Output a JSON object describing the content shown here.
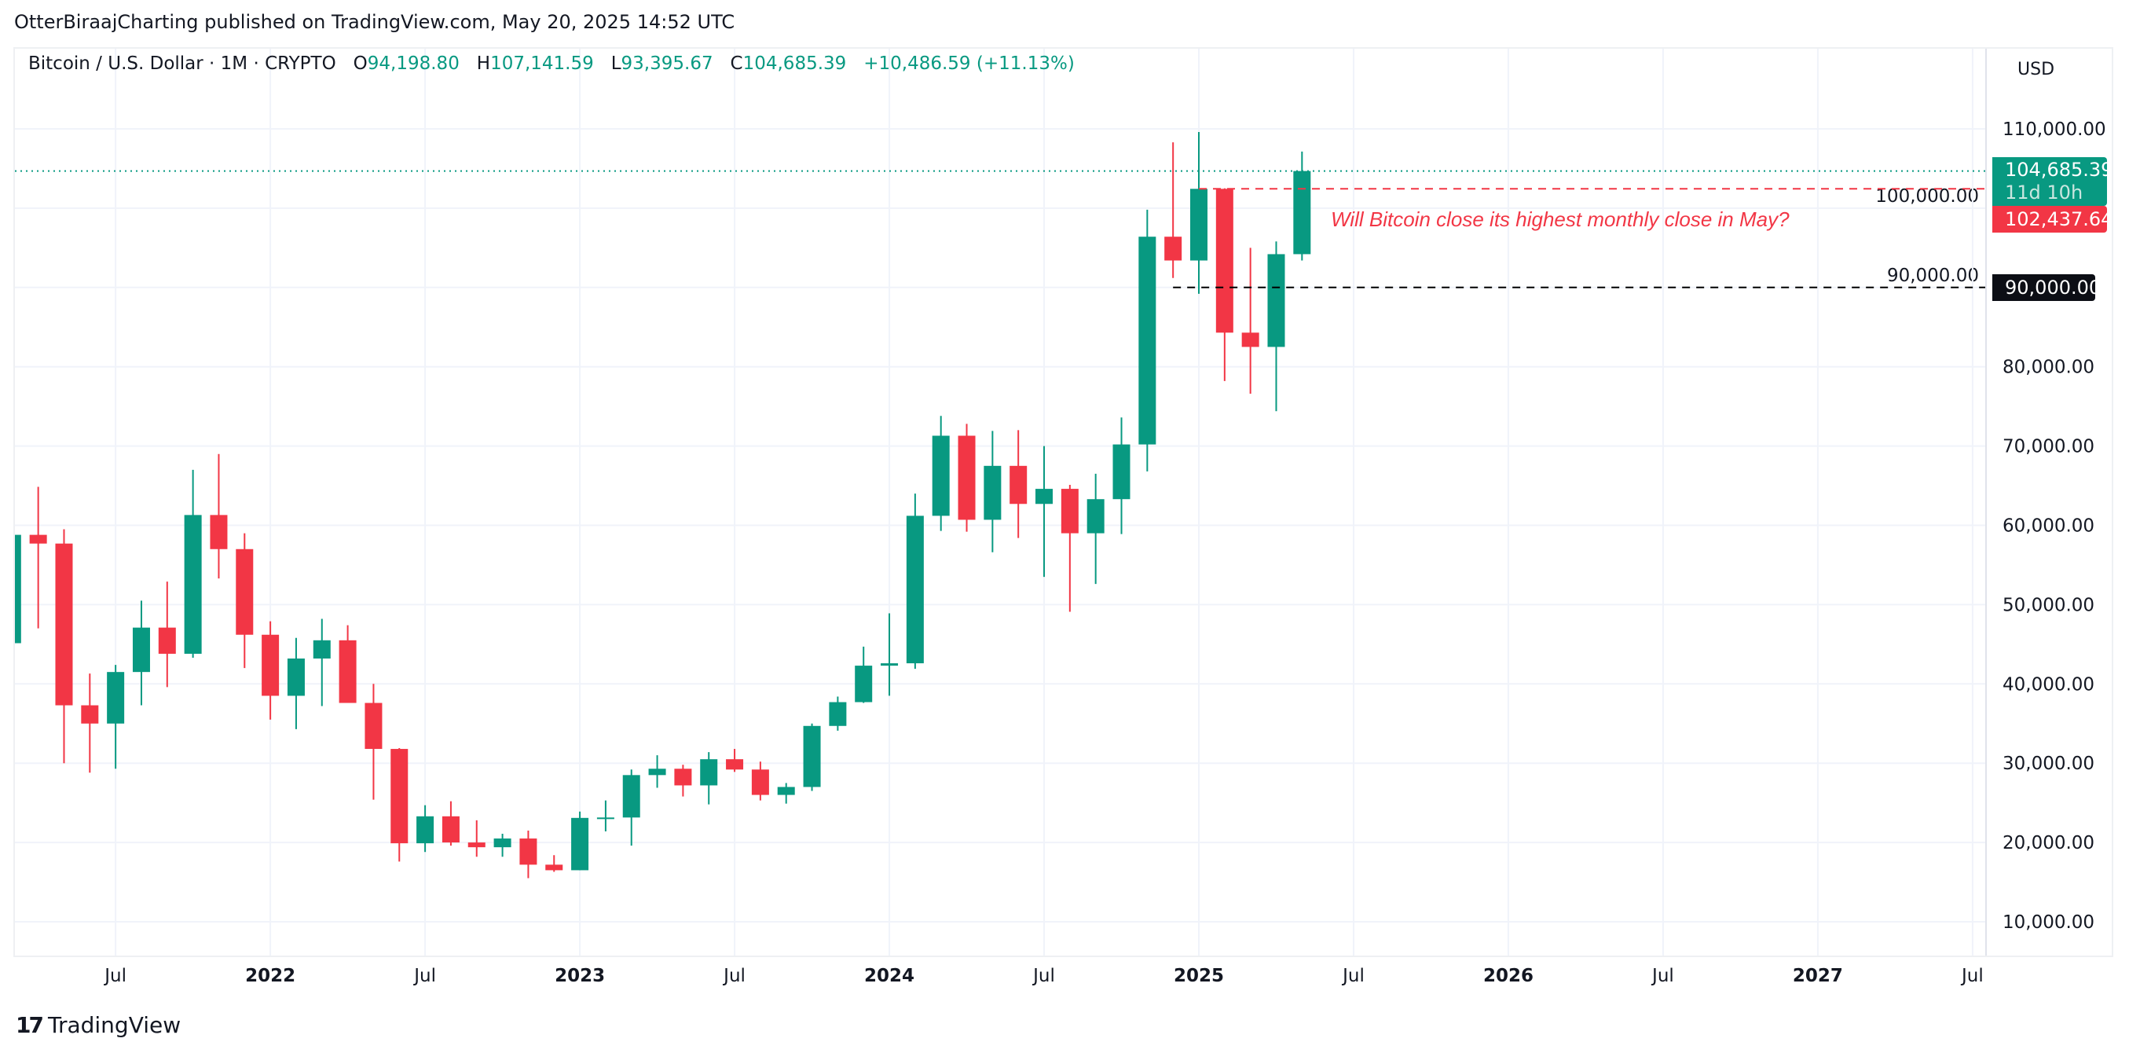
{
  "header": {
    "publisher_line": "OtterBiraajCharting published on TradingView.com, May 20, 2025 14:52 UTC"
  },
  "legend": {
    "symbol": "Bitcoin / U.S. Dollar · 1M · CRYPTO",
    "open_label": "O",
    "open": "94,198.80",
    "high_label": "H",
    "high": "107,141.59",
    "low_label": "L",
    "low": "93,395.67",
    "close_label": "C",
    "close": "104,685.39",
    "change": "+10,486.59 (+11.13%)"
  },
  "price_axis": {
    "currency": "USD"
  },
  "tags": {
    "last_price": "104,685.39",
    "countdown": "11d 10h",
    "red_level": "102,437.64",
    "black_level": "90,000.00"
  },
  "annotation": "Will Bitcoin close its highest monthly close in May?",
  "footer": {
    "logo_mark": "17",
    "brand": "TradingView"
  },
  "colors": {
    "up": "#089981",
    "down": "#f23645",
    "grid": "#f0f3fa",
    "black_line": "#000000"
  },
  "chart_data": {
    "type": "candlestick",
    "title": "Bitcoin / U.S. Dollar · 1M · CRYPTO",
    "ylim": [
      4000,
      118000
    ],
    "y_ticks": [
      10000,
      20000,
      30000,
      40000,
      50000,
      60000,
      70000,
      80000,
      90000,
      100000,
      110000
    ],
    "y_tick_labels": [
      "10,000.00",
      "20,000.00",
      "30,000.00",
      "40,000.00",
      "50,000.00",
      "60,000.00",
      "70,000.00",
      "80,000.00",
      "90,000.00",
      "100,000.00",
      "110,000.00"
    ],
    "x_ticks": [
      {
        "label": "Jul",
        "month": "2021-07"
      },
      {
        "label": "2022",
        "month": "2022-01"
      },
      {
        "label": "Jul",
        "month": "2022-07"
      },
      {
        "label": "2023",
        "month": "2023-01"
      },
      {
        "label": "Jul",
        "month": "2023-07"
      },
      {
        "label": "2024",
        "month": "2024-01"
      },
      {
        "label": "Jul",
        "month": "2024-07"
      },
      {
        "label": "2025",
        "month": "2025-01"
      },
      {
        "label": "Jul",
        "month": "2025-07"
      },
      {
        "label": "2026",
        "month": "2026-01"
      },
      {
        "label": "Jul",
        "month": "2026-07"
      },
      {
        "label": "2027",
        "month": "2027-01"
      },
      {
        "label": "Jul",
        "month": "2027-07"
      }
    ],
    "lines": [
      {
        "name": "last-price-line",
        "value": 104685.39,
        "style": "dotted",
        "color": "#089981",
        "from": "2021-02"
      },
      {
        "name": "resistance-line",
        "value": 102437.64,
        "style": "dashed",
        "color": "#f23645",
        "from": "2025-01"
      },
      {
        "name": "support-line",
        "value": 90000,
        "style": "dashed",
        "color": "#000000",
        "from": "2024-12"
      }
    ],
    "candles": [
      [
        "2021-03",
        45135,
        61683,
        45000,
        58800
      ],
      [
        "2021-04",
        58800,
        64854,
        47000,
        57700
      ],
      [
        "2021-05",
        57700,
        59500,
        30000,
        37300
      ],
      [
        "2021-06",
        37300,
        41300,
        28800,
        35000
      ],
      [
        "2021-07",
        35000,
        42400,
        29300,
        41500
      ],
      [
        "2021-08",
        41500,
        50500,
        37300,
        47100
      ],
      [
        "2021-09",
        47100,
        52900,
        39600,
        43800
      ],
      [
        "2021-10",
        43800,
        67000,
        43300,
        61300
      ],
      [
        "2021-11",
        61300,
        69000,
        53300,
        57000
      ],
      [
        "2021-12",
        57000,
        59000,
        42000,
        46200
      ],
      [
        "2022-01",
        46200,
        47900,
        35500,
        38500
      ],
      [
        "2022-02",
        38500,
        45800,
        34300,
        43200
      ],
      [
        "2022-03",
        43200,
        48200,
        37200,
        45500
      ],
      [
        "2022-04",
        45500,
        47400,
        37700,
        37600
      ],
      [
        "2022-05",
        37600,
        40000,
        25400,
        31800
      ],
      [
        "2022-06",
        31800,
        31900,
        17600,
        19900
      ],
      [
        "2022-07",
        19900,
        24700,
        18800,
        23300
      ],
      [
        "2022-08",
        23300,
        25200,
        19600,
        20000
      ],
      [
        "2022-09",
        20000,
        22800,
        18200,
        19400
      ],
      [
        "2022-10",
        19400,
        21100,
        18200,
        20500
      ],
      [
        "2022-11",
        20500,
        21500,
        15500,
        17200
      ],
      [
        "2022-12",
        17200,
        18400,
        16300,
        16500
      ],
      [
        "2023-01",
        16500,
        23900,
        16500,
        23100
      ],
      [
        "2023-02",
        23100,
        25300,
        21400,
        23150
      ],
      [
        "2023-03",
        23150,
        29200,
        19600,
        28500
      ],
      [
        "2023-04",
        28500,
        31000,
        26900,
        29300
      ],
      [
        "2023-05",
        29300,
        29800,
        25800,
        27200
      ],
      [
        "2023-06",
        27200,
        31400,
        24800,
        30500
      ],
      [
        "2023-07",
        30500,
        31800,
        28900,
        29200
      ],
      [
        "2023-08",
        29200,
        30200,
        25300,
        26000
      ],
      [
        "2023-09",
        26000,
        27500,
        24900,
        27000
      ],
      [
        "2023-10",
        27000,
        35000,
        26500,
        34700
      ],
      [
        "2023-11",
        34700,
        38400,
        34100,
        37700
      ],
      [
        "2023-12",
        37700,
        44700,
        37600,
        42300
      ],
      [
        "2024-01",
        42300,
        48900,
        38500,
        42600
      ],
      [
        "2024-02",
        42600,
        64000,
        41900,
        61200
      ],
      [
        "2024-03",
        61200,
        73800,
        59300,
        71300
      ],
      [
        "2024-04",
        71300,
        72800,
        59200,
        60700
      ],
      [
        "2024-05",
        60700,
        71900,
        56600,
        67500
      ],
      [
        "2024-06",
        67500,
        72000,
        58400,
        62700
      ],
      [
        "2024-07",
        62700,
        70000,
        53500,
        64600
      ],
      [
        "2024-08",
        64600,
        65100,
        49100,
        59000
      ],
      [
        "2024-09",
        59000,
        66500,
        52600,
        63300
      ],
      [
        "2024-10",
        63300,
        73600,
        58900,
        70200
      ],
      [
        "2024-11",
        70200,
        99800,
        66800,
        96400
      ],
      [
        "2024-12",
        96400,
        108300,
        91200,
        93400
      ],
      [
        "2025-01",
        93400,
        109600,
        89200,
        102437.64
      ],
      [
        "2025-02",
        102437.64,
        102500,
        78200,
        84300
      ],
      [
        "2025-03",
        84300,
        95000,
        76600,
        82500
      ],
      [
        "2025-04",
        82500,
        95800,
        74400,
        94198.8
      ],
      [
        "2025-05",
        94198.8,
        107141.59,
        93395.67,
        104685.39
      ]
    ]
  }
}
